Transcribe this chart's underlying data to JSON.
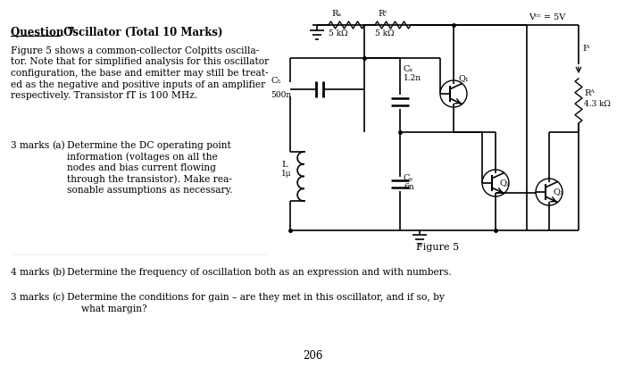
{
  "bg_color": "#ffffff",
  "page_number": "206",
  "title_underline": "Question 7",
  "title_rest": " Oscillator (Total 10 Marks)",
  "body_text": "Figure 5 shows a common-collector Colpitts oscilla-\ntor. Note that for simplified analysis for this oscillator\nconfiguration, the base and emitter may still be treat-\ned as the negative and positive inputs of an amplifier\nrespectively. Transistor fT is 100 MHz.",
  "q3_marks": "3 marks",
  "q3_label": "(a)",
  "q3_text": "Determine the DC operating point\ninformation (voltages on all the\nnodes and bias current flowing\nthrough the transistor). Make rea-\nsonable assumptions as necessary.",
  "q4_marks": "4 marks",
  "q4_label": "(b)",
  "q4_text": "Determine the frequency of oscillation both as an expression and with numbers.",
  "q5_marks": "3 marks",
  "q5_label": "(c)",
  "q5_text": "Determine the conditions for gain – are they met in this oscillator, and if so, by",
  "q5_text2": "what margin?",
  "figure_label": "Figure 5",
  "circuit": {
    "Vcc_label": "Vᶜᶜ = 5V",
    "RA_label": "Rₐ",
    "RA_val": "5 kΩ",
    "RC_label": "Rᶜ",
    "RC_val": "5 kΩ",
    "CZ_label": "C₅",
    "CZ_val": "500n",
    "CX_label": "Cₓ",
    "CX_val": "1.2n",
    "L_label": "L",
    "L_val": "1μ",
    "CY_label": "Cᵧ",
    "CY_val": "6n",
    "Q1_label": "Q₁",
    "Q2_label": "Q₂",
    "Q3_label": "Q₃",
    "RB_label": "Rᴬ",
    "RB_val": "4.3 kΩ",
    "IB_label": "Iᴬ"
  }
}
